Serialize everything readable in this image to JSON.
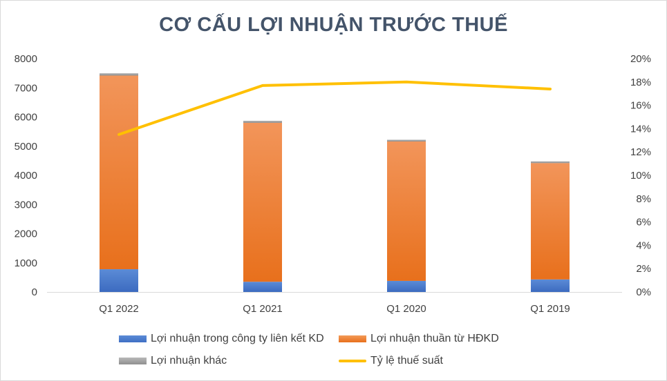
{
  "chart_data": {
    "type": "bar",
    "title": "CƠ CẤU LỢI NHUẬN TRƯỚC THUẾ",
    "categories": [
      "Q1 2022",
      "Q1 2021",
      "Q1 2020",
      "Q1 2019"
    ],
    "series": [
      {
        "name": "Lợi nhuận trong công ty liên kết KD",
        "type": "bar",
        "axis": "left",
        "color": "#4472c4",
        "values": [
          780,
          350,
          380,
          430
        ]
      },
      {
        "name": "Lợi nhuận thuần từ HĐKD",
        "type": "bar",
        "axis": "left",
        "color": "#ed7d31",
        "values": [
          6640,
          5450,
          4780,
          3990
        ]
      },
      {
        "name": "Lợi nhuận khác",
        "type": "bar",
        "axis": "left",
        "color": "#a5a5a5",
        "values": [
          80,
          70,
          60,
          60
        ]
      },
      {
        "name": "Tỷ lệ thuế suất",
        "type": "line",
        "axis": "right",
        "color": "#ffc000",
        "values": [
          13.5,
          17.7,
          18.0,
          17.4
        ]
      }
    ],
    "y_left": {
      "min": 0,
      "max": 8000,
      "ticks": [
        "0",
        "1000",
        "2000",
        "3000",
        "4000",
        "5000",
        "6000",
        "7000",
        "8000"
      ]
    },
    "y_right": {
      "min": 0,
      "max": 20,
      "ticks": [
        "0%",
        "2%",
        "4%",
        "6%",
        "8%",
        "10%",
        "12%",
        "14%",
        "16%",
        "18%",
        "20%"
      ]
    },
    "stacked": true,
    "grid": false,
    "legend_position": "bottom"
  }
}
